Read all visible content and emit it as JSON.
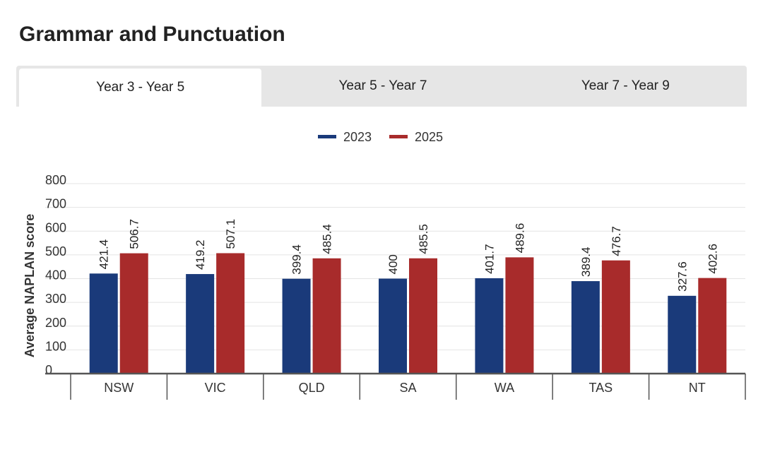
{
  "title": "Grammar and Punctuation",
  "tabs": [
    {
      "label": "Year 3 - Year 5",
      "active": true
    },
    {
      "label": "Year 5 - Year 7",
      "active": false
    },
    {
      "label": "Year 7 - Year 9",
      "active": false
    }
  ],
  "chart_data": {
    "type": "bar",
    "title": "",
    "xlabel": "",
    "ylabel": "Average NAPLAN score",
    "ylim": [
      0,
      800
    ],
    "yticks": [
      0,
      100,
      200,
      300,
      400,
      500,
      600,
      700,
      800
    ],
    "grid": true,
    "legend_position": "top-center",
    "categories": [
      "NSW",
      "VIC",
      "QLD",
      "SA",
      "WA",
      "TAS",
      "NT"
    ],
    "series": [
      {
        "name": "2023",
        "color": "#1a3a7a",
        "values": [
          421.4,
          419.2,
          399.4,
          400,
          401.7,
          389.4,
          327.6
        ]
      },
      {
        "name": "2025",
        "color": "#a82b2b",
        "values": [
          506.7,
          507.1,
          485.4,
          485.5,
          489.6,
          476.7,
          402.6
        ]
      }
    ]
  }
}
